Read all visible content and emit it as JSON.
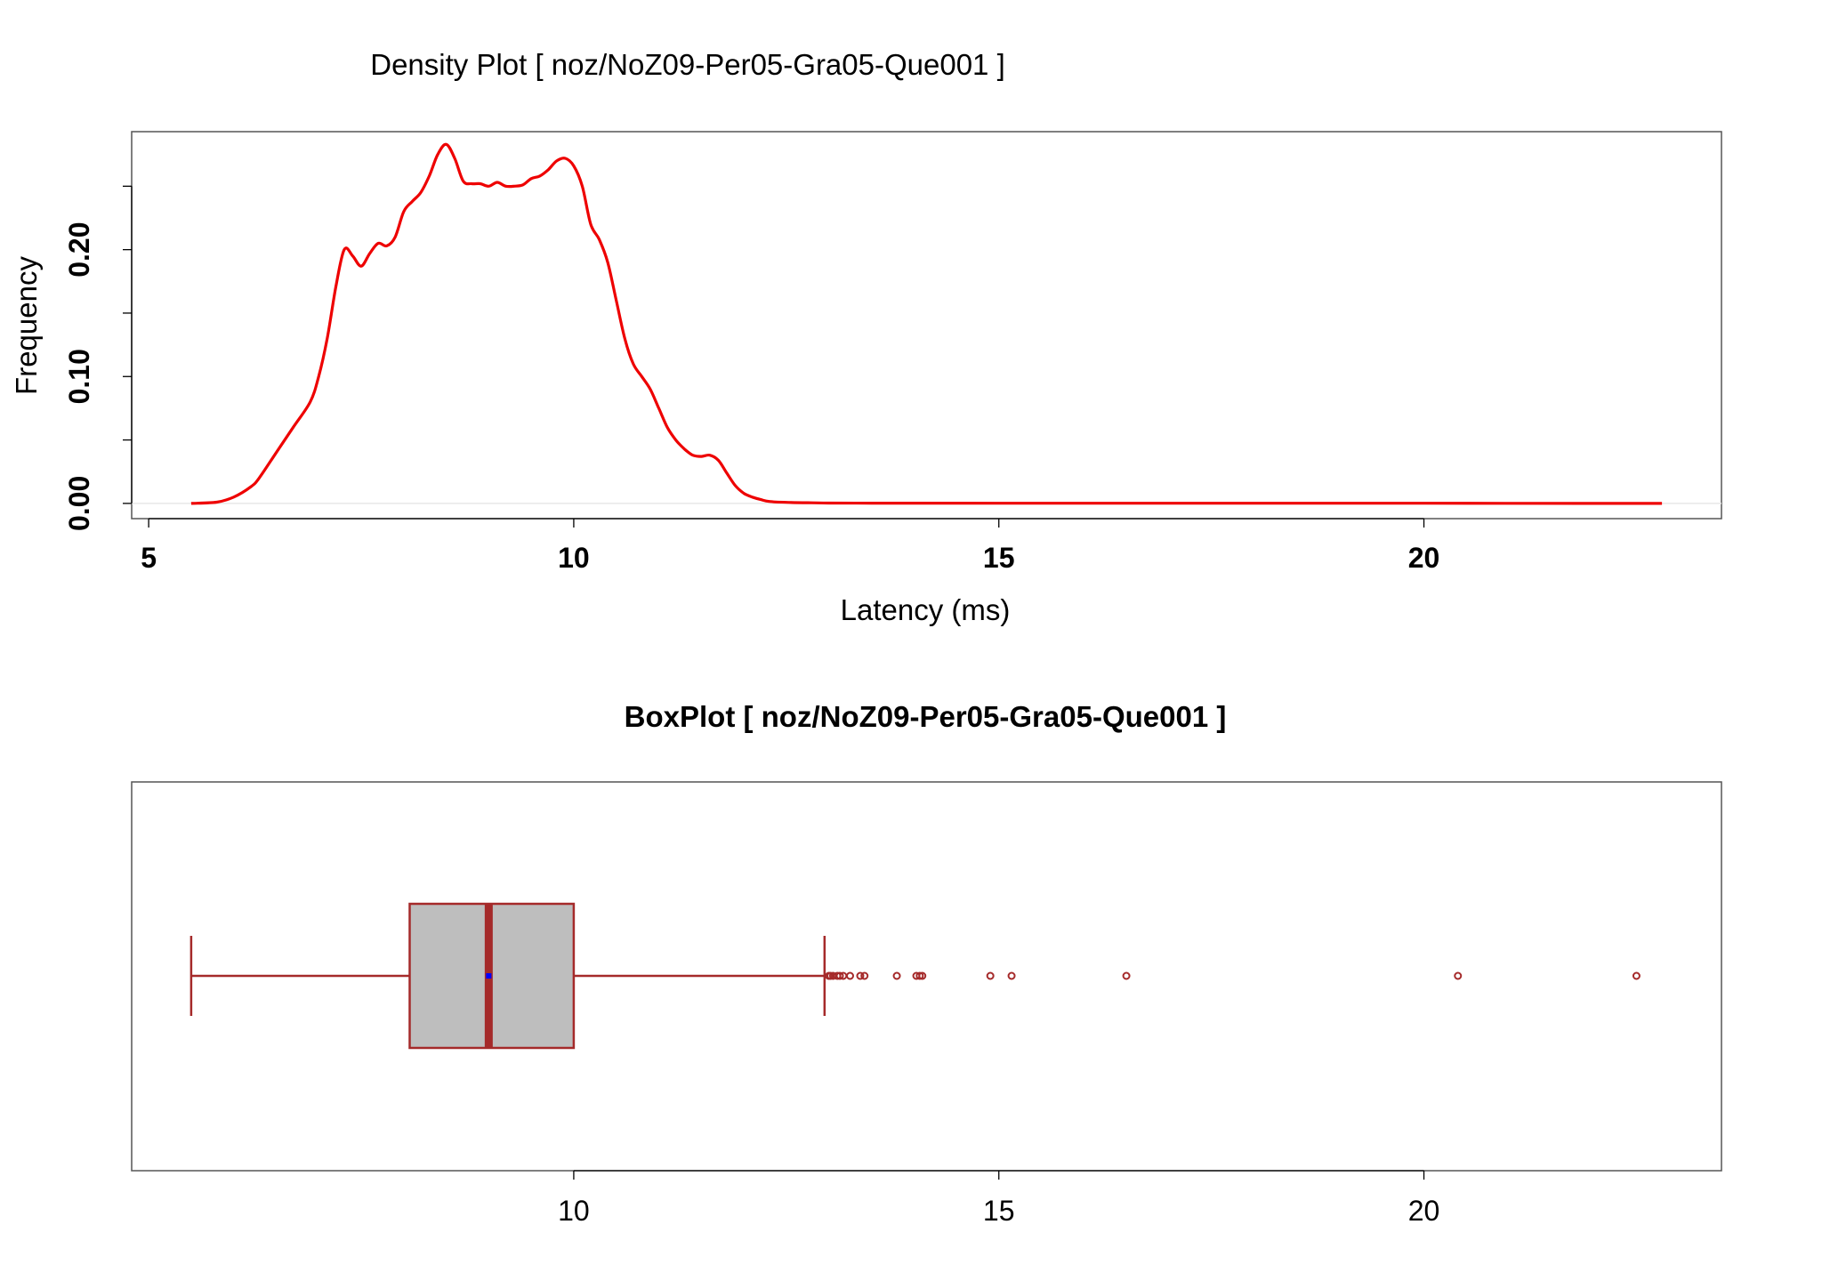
{
  "colors": {
    "density_line": "#ee0000",
    "box_stroke": "#a52a2a",
    "box_fill": "#bebebe",
    "median": "#a52a2a",
    "mean_marker": "#0000ff",
    "baseline": "#e8e8e8"
  },
  "chart_data": [
    {
      "type": "line",
      "title": "Density Plot [ noz/NoZ09-Per05-Gra05-Que001 ]",
      "xlabel": "Latency (ms)",
      "ylabel": "Frequency",
      "xlim": [
        4.8,
        23.5
      ],
      "ylim": [
        -0.012,
        0.293
      ],
      "xticks": [
        5,
        10,
        15,
        20
      ],
      "yticks": [
        0.0,
        0.05,
        0.1,
        0.15,
        0.2,
        0.25
      ],
      "ytick_labels": [
        "0.00",
        "",
        "0.10",
        "",
        "0.20",
        ""
      ],
      "grid": false,
      "series": [
        {
          "x": [
            5.5,
            5.8,
            6.0,
            6.2,
            6.3,
            6.5,
            6.7,
            6.9,
            7.0,
            7.1,
            7.2,
            7.3,
            7.4,
            7.5,
            7.6,
            7.7,
            7.8,
            7.9,
            8.0,
            8.1,
            8.2,
            8.3,
            8.4,
            8.5,
            8.6,
            8.7,
            8.8,
            8.9,
            9.0,
            9.1,
            9.2,
            9.3,
            9.4,
            9.5,
            9.6,
            9.7,
            9.8,
            9.9,
            10.0,
            10.1,
            10.2,
            10.3,
            10.4,
            10.5,
            10.6,
            10.7,
            10.8,
            10.9,
            11.0,
            11.1,
            11.2,
            11.3,
            11.4,
            11.5,
            11.6,
            11.7,
            11.8,
            11.9,
            12.0,
            12.1,
            12.2,
            12.3,
            12.5,
            12.8,
            13.0,
            13.5,
            14.0,
            15.0,
            17.0,
            20.0,
            22.8
          ],
          "y": [
            0.0,
            0.001,
            0.005,
            0.013,
            0.02,
            0.04,
            0.06,
            0.08,
            0.1,
            0.13,
            0.17,
            0.2,
            0.195,
            0.187,
            0.197,
            0.205,
            0.203,
            0.21,
            0.23,
            0.238,
            0.245,
            0.258,
            0.275,
            0.283,
            0.272,
            0.254,
            0.252,
            0.252,
            0.25,
            0.253,
            0.25,
            0.25,
            0.251,
            0.256,
            0.258,
            0.263,
            0.27,
            0.272,
            0.266,
            0.25,
            0.22,
            0.208,
            0.19,
            0.16,
            0.13,
            0.11,
            0.1,
            0.09,
            0.075,
            0.06,
            0.05,
            0.043,
            0.038,
            0.037,
            0.038,
            0.034,
            0.024,
            0.014,
            0.008,
            0.005,
            0.003,
            0.0015,
            0.0008,
            0.0005,
            0.0003,
            0.0002,
            0.0002,
            0.0001,
            0.0001,
            0.0001,
            0.0
          ]
        }
      ]
    },
    {
      "type": "boxplot",
      "title": "BoxPlot [ noz/NoZ09-Per05-Gra05-Que001 ]",
      "xlim": [
        4.8,
        23.5
      ],
      "xticks": [
        10,
        15,
        20
      ],
      "whisker_low": 5.5,
      "q1": 8.07,
      "median": 9.0,
      "mean": 9.0,
      "q3": 10.0,
      "whisker_high": 12.95,
      "outliers": [
        13.0,
        13.02,
        13.05,
        13.1,
        13.13,
        13.17,
        13.25,
        13.37,
        13.42,
        13.8,
        14.03,
        14.07,
        14.1,
        14.9,
        15.15,
        16.5,
        20.4,
        22.5
      ]
    }
  ]
}
